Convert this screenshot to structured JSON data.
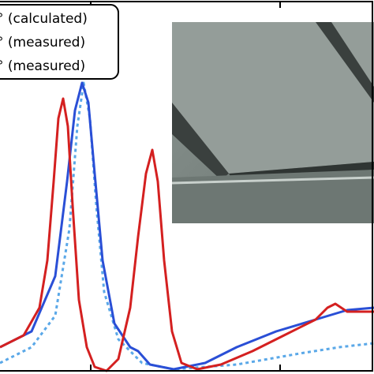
{
  "chart_data": {
    "type": "line",
    "xlim": [
      0,
      474
    ],
    "ylim": [
      0,
      474
    ],
    "xticks": [
      115,
      355
    ],
    "series": [
      {
        "name": "° (calculated)",
        "color": "#5aa8e8",
        "dash": true,
        "x": [
          0,
          40,
          70,
          88,
          98,
          106,
          114,
          122,
          132,
          150,
          180,
          220,
          300,
          380,
          430,
          474
        ],
        "values": [
          14,
          34,
          74,
          184,
          314,
          369,
          324,
          214,
          104,
          44,
          14,
          6,
          12,
          26,
          34,
          39
        ]
      },
      {
        "name": "° (measured)",
        "color": "#2a4fd6",
        "dash": false,
        "x": [
          0,
          40,
          70,
          85,
          95,
          104,
          112,
          120,
          130,
          145,
          165,
          175,
          190,
          220,
          260,
          300,
          350,
          400,
          440,
          474
        ],
        "values": [
          34,
          54,
          124,
          244,
          334,
          369,
          344,
          254,
          144,
          64,
          34,
          29,
          12,
          6,
          14,
          34,
          54,
          69,
          81,
          84
        ]
      },
      {
        "name": "° (measured)",
        "color": "#d42020",
        "dash": false,
        "x": [
          0,
          30,
          50,
          60,
          68,
          74,
          80,
          86,
          92,
          100,
          110,
          120,
          135,
          150,
          165,
          175,
          185,
          193,
          200,
          208,
          218,
          230,
          250,
          280,
          320,
          360,
          400,
          415,
          425,
          440,
          474
        ],
        "values": [
          34,
          49,
          84,
          144,
          244,
          324,
          349,
          314,
          214,
          94,
          34,
          9,
          4,
          19,
          84,
          174,
          254,
          284,
          244,
          144,
          54,
          14,
          6,
          12,
          29,
          49,
          69,
          84,
          89,
          79,
          79
        ]
      }
    ]
  }
}
